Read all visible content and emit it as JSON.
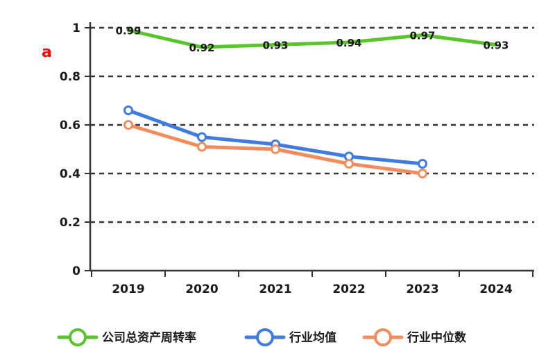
{
  "chart_data": {
    "type": "line",
    "x": [
      "2019",
      "2020",
      "2021",
      "2022",
      "2023",
      "2024"
    ],
    "ylim": [
      0,
      1
    ],
    "yticks": [
      "0",
      "0.2",
      "0.4",
      "0.6",
      "0.8",
      "1"
    ],
    "grid": true,
    "legend_position": "bottom",
    "unit_mark": "a",
    "colors": {
      "unit_mark": "#ff0000"
    },
    "series": [
      {
        "name": "公司总资产周转率",
        "color": "#5ac52b",
        "values": [
          0.99,
          0.92,
          0.93,
          0.94,
          0.97,
          0.93
        ],
        "labels": [
          "0.99",
          "0.92",
          "0.93",
          "0.94",
          "0.97",
          "0.93"
        ]
      },
      {
        "name": "行业均值",
        "color": "#3f7be0",
        "values": [
          0.66,
          0.55,
          0.52,
          0.47,
          0.44,
          null
        ]
      },
      {
        "name": "行业中位数",
        "color": "#f38c5c",
        "values": [
          0.6,
          0.51,
          0.5,
          0.44,
          0.4,
          null
        ]
      }
    ]
  }
}
